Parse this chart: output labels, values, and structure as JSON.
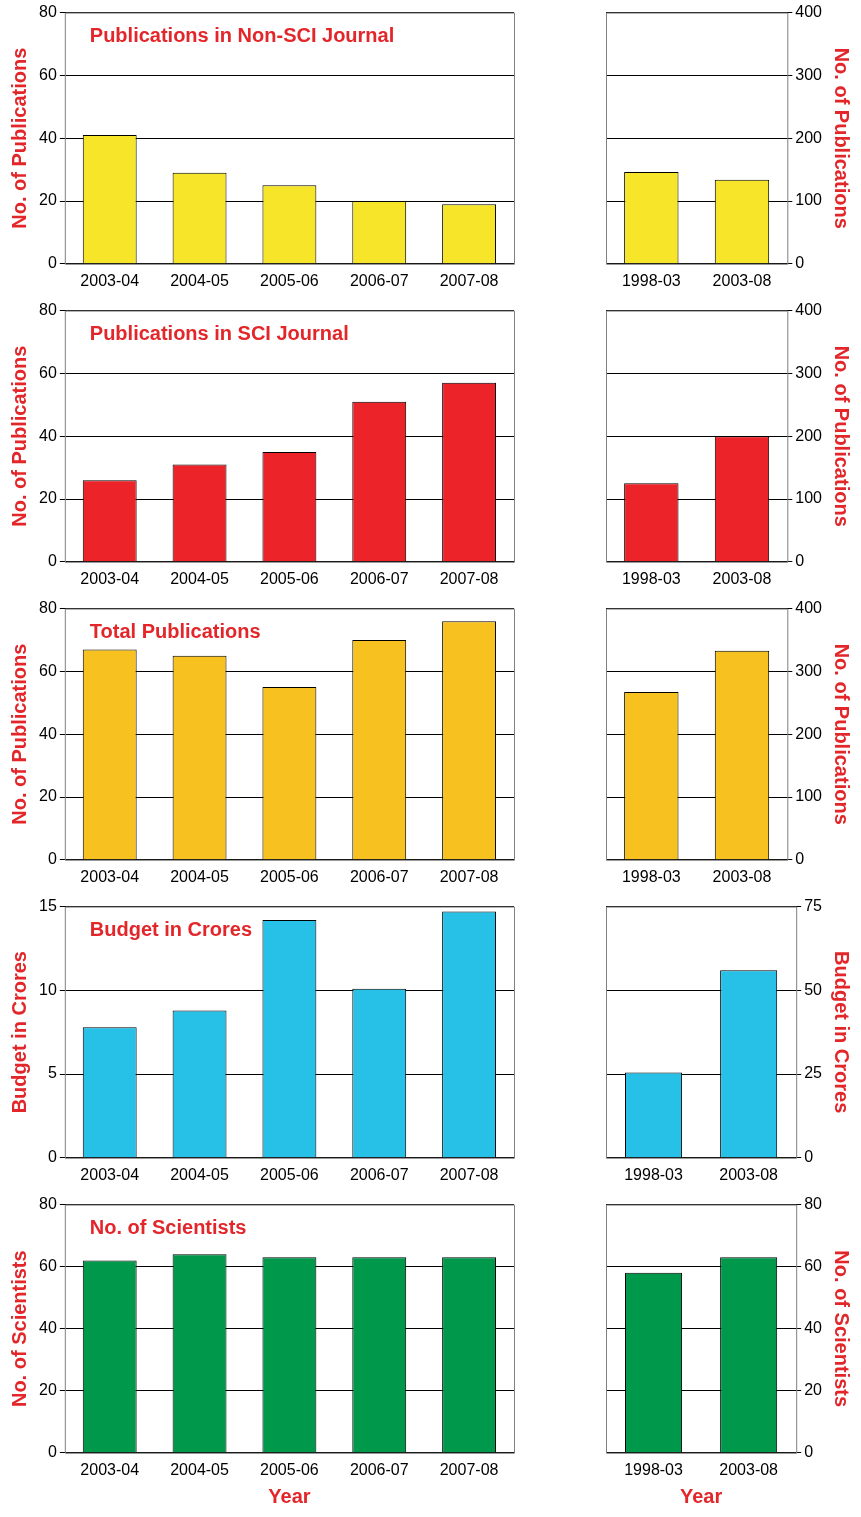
{
  "chart_data": [
    {
      "type": "bar",
      "title": "Publications in Non-SCI Journal",
      "ylabel": "No. of Publications",
      "categories": [
        "2003-04",
        "2004-05",
        "2005-06",
        "2006-07",
        "2007-08"
      ],
      "values": [
        41,
        29,
        25,
        20,
        19
      ],
      "color": "#f7e52a",
      "ylim": [
        0,
        80
      ],
      "yticks": [
        0,
        20,
        40,
        60,
        80
      ],
      "grid": "y"
    },
    {
      "type": "bar",
      "y2label": "No. of Publications",
      "categories": [
        "1998-03",
        "2003-08"
      ],
      "series": [
        {
          "color": "#f7e52a",
          "values": [
            146,
            134
          ],
          "axis": "y2"
        }
      ],
      "y2lim": [
        0,
        400
      ],
      "y2ticks": [
        0,
        100,
        200,
        300,
        400
      ],
      "grid": "y"
    },
    {
      "type": "bar",
      "title": "Publications in SCI Journal",
      "ylabel": "No. of Publications",
      "categories": [
        "2003-04",
        "2004-05",
        "2005-06",
        "2006-07",
        "2007-08"
      ],
      "values": [
        26,
        31,
        35,
        51,
        57
      ],
      "color": "#ec2329",
      "ylim": [
        0,
        80
      ],
      "yticks": [
        0,
        20,
        40,
        60,
        80
      ],
      "grid": "y"
    },
    {
      "type": "bar",
      "y2label": "No. of Publications",
      "categories": [
        "1998-03",
        "2003-08"
      ],
      "series": [
        {
          "color": "#ec2329",
          "values": [
            125,
            200
          ],
          "axis": "y2"
        }
      ],
      "y2lim": [
        0,
        400
      ],
      "y2ticks": [
        0,
        100,
        200,
        300,
        400
      ],
      "grid": "y"
    },
    {
      "type": "bar",
      "title": "Total Publications",
      "ylabel": "No. of Publications",
      "categories": [
        "2003-04",
        "2004-05",
        "2005-06",
        "2006-07",
        "2007-08"
      ],
      "values": [
        67,
        65,
        55,
        70,
        76
      ],
      "color": "#f7c21f",
      "ylim": [
        0,
        80
      ],
      "yticks": [
        0,
        20,
        40,
        60,
        80
      ],
      "grid": "y"
    },
    {
      "type": "bar",
      "y2label": "No. of Publications",
      "categories": [
        "1998-03",
        "2003-08"
      ],
      "series": [
        {
          "color": "#f7c21f",
          "values": [
            267,
            333
          ],
          "axis": "y2"
        }
      ],
      "y2lim": [
        0,
        400
      ],
      "y2ticks": [
        0,
        100,
        200,
        300,
        400
      ],
      "grid": "y"
    },
    {
      "type": "bar",
      "title": "Budget in Crores",
      "ylabel": "Budget in Crores",
      "categories": [
        "2003-04",
        "2004-05",
        "2005-06",
        "2006-07",
        "2007-08"
      ],
      "values": [
        7.8,
        8.8,
        14.2,
        10.1,
        14.7
      ],
      "color": "#27c1e8",
      "ylim": [
        0,
        15
      ],
      "yticks": [
        0,
        5,
        10,
        15
      ],
      "grid": "y"
    },
    {
      "type": "bar",
      "y2label": "Budget in Crores",
      "categories": [
        "1998-03",
        "2003-08"
      ],
      "series": [
        {
          "color": "#27c1e8",
          "values": [
            25.5,
            56
          ],
          "axis": "y2"
        }
      ],
      "y2lim": [
        0,
        75
      ],
      "y2ticks": [
        0,
        25,
        50,
        75
      ],
      "grid": "y"
    },
    {
      "type": "bar",
      "title": "No. of Scientists",
      "ylabel": "No. of Scientists",
      "xlabel": "Year",
      "categories": [
        "2003-04",
        "2004-05",
        "2005-06",
        "2006-07",
        "2007-08"
      ],
      "values": [
        62,
        64,
        63,
        63,
        63
      ],
      "color": "#00994c",
      "ylim": [
        0,
        80
      ],
      "yticks": [
        0,
        20,
        40,
        60,
        80
      ],
      "grid": "y"
    },
    {
      "type": "bar",
      "y2label": "No. of Scientists",
      "xlabel": "Year",
      "categories": [
        "1998-03",
        "2003-08"
      ],
      "series": [
        {
          "color": "#00994c",
          "values": [
            58,
            63
          ],
          "axis": "y2"
        }
      ],
      "y2lim": [
        0,
        80
      ],
      "y2ticks": [
        0,
        20,
        40,
        60,
        80
      ],
      "grid": "y"
    }
  ]
}
